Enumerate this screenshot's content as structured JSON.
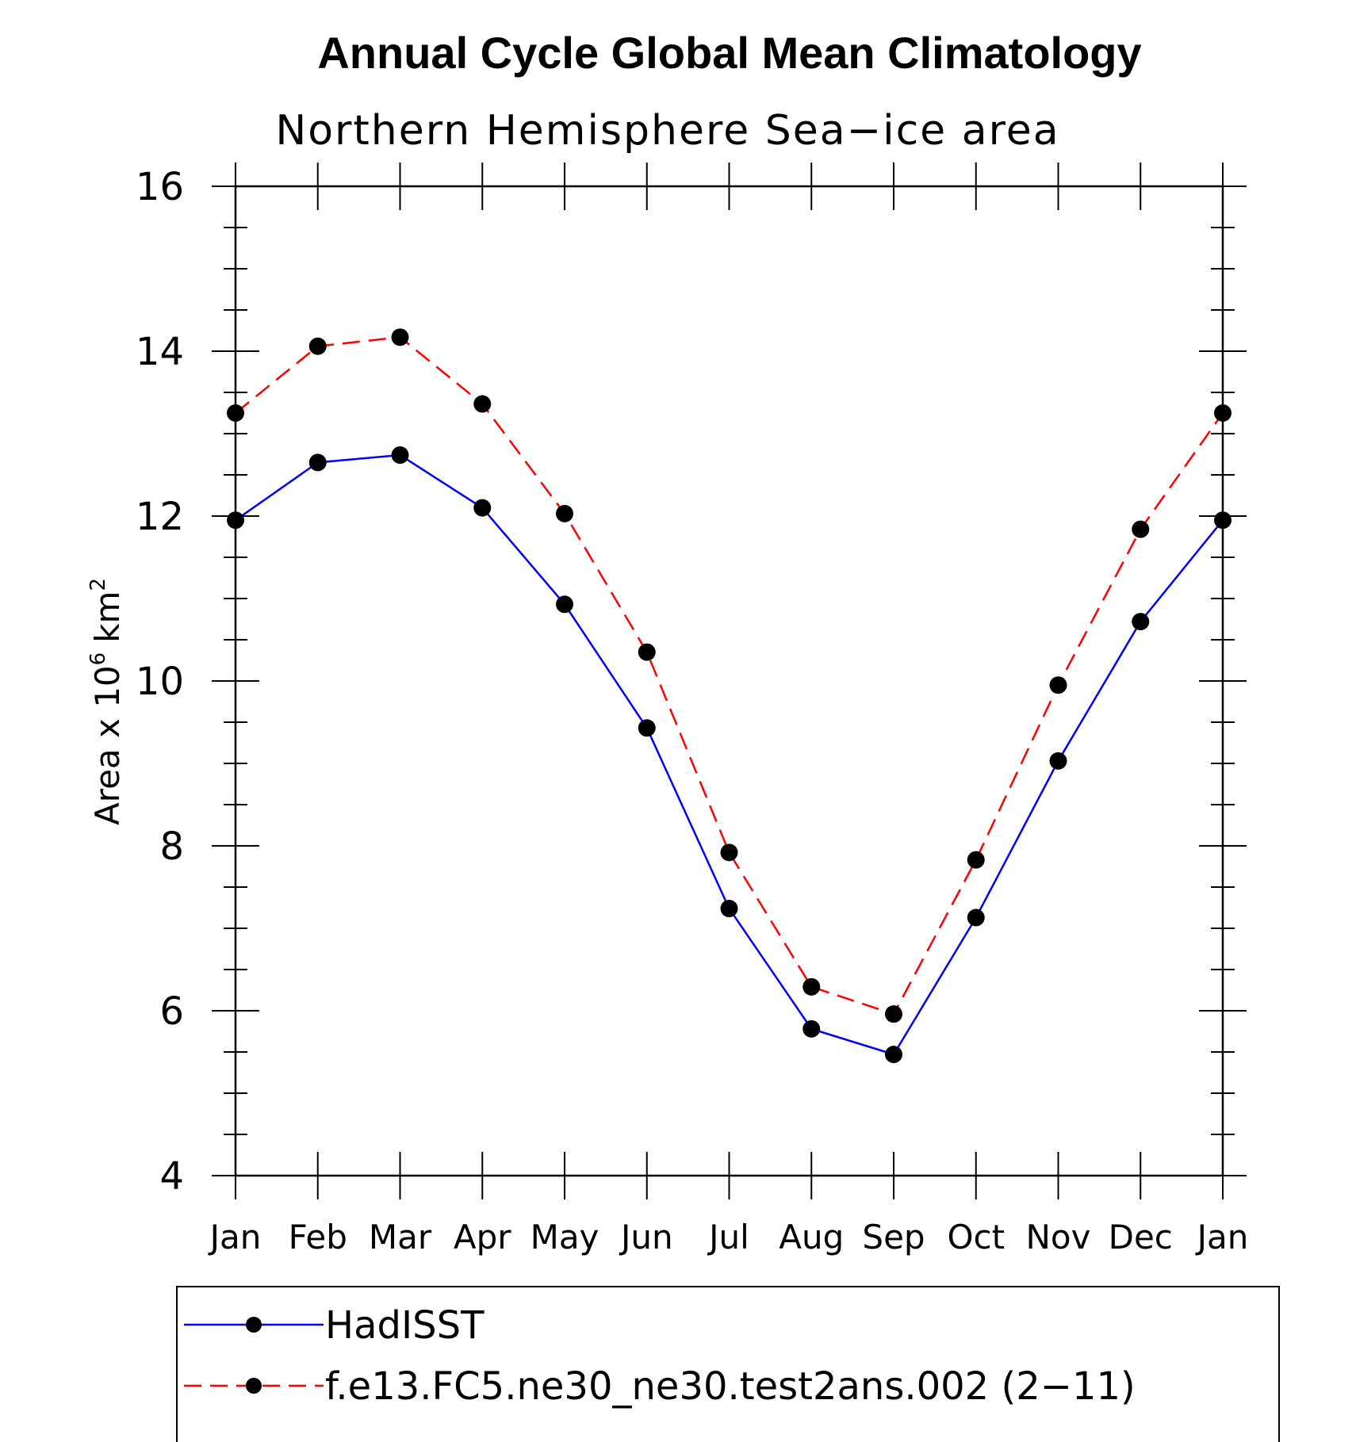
{
  "chart_data": {
    "type": "line",
    "title": "Annual Cycle Global Mean Climatology",
    "subtitle": "Northern Hemisphere Sea−ice area",
    "ylabel": "Area x 10",
    "ylabel_superscript": "6",
    "ylabel_unit": "km",
    "ylabel_unit_superscript": "2",
    "categories": [
      "Jan",
      "Feb",
      "Mar",
      "Apr",
      "May",
      "Jun",
      "Jul",
      "Aug",
      "Sep",
      "Oct",
      "Nov",
      "Dec",
      "Jan"
    ],
    "ylim": [
      4,
      16
    ],
    "y_ticks": [
      4,
      6,
      8,
      10,
      12,
      14,
      16
    ],
    "grid": false,
    "legend_position": "bottom",
    "series": [
      {
        "name": "HadISST",
        "color": "#0000ff",
        "line_style": "solid",
        "marker": "filled-circle",
        "values": [
          11.95,
          12.65,
          12.74,
          12.1,
          10.93,
          9.43,
          7.24,
          5.78,
          5.47,
          7.13,
          9.03,
          10.72,
          11.95
        ]
      },
      {
        "name": "f.e13.FC5.ne30_ne30.test2ans.002 (2−11)",
        "color": "#ff0000",
        "line_style": "dashed",
        "marker": "filled-circle",
        "values": [
          13.25,
          14.06,
          14.17,
          13.36,
          12.03,
          10.35,
          7.92,
          6.29,
          5.96,
          7.83,
          9.95,
          11.84,
          13.25
        ]
      }
    ]
  }
}
